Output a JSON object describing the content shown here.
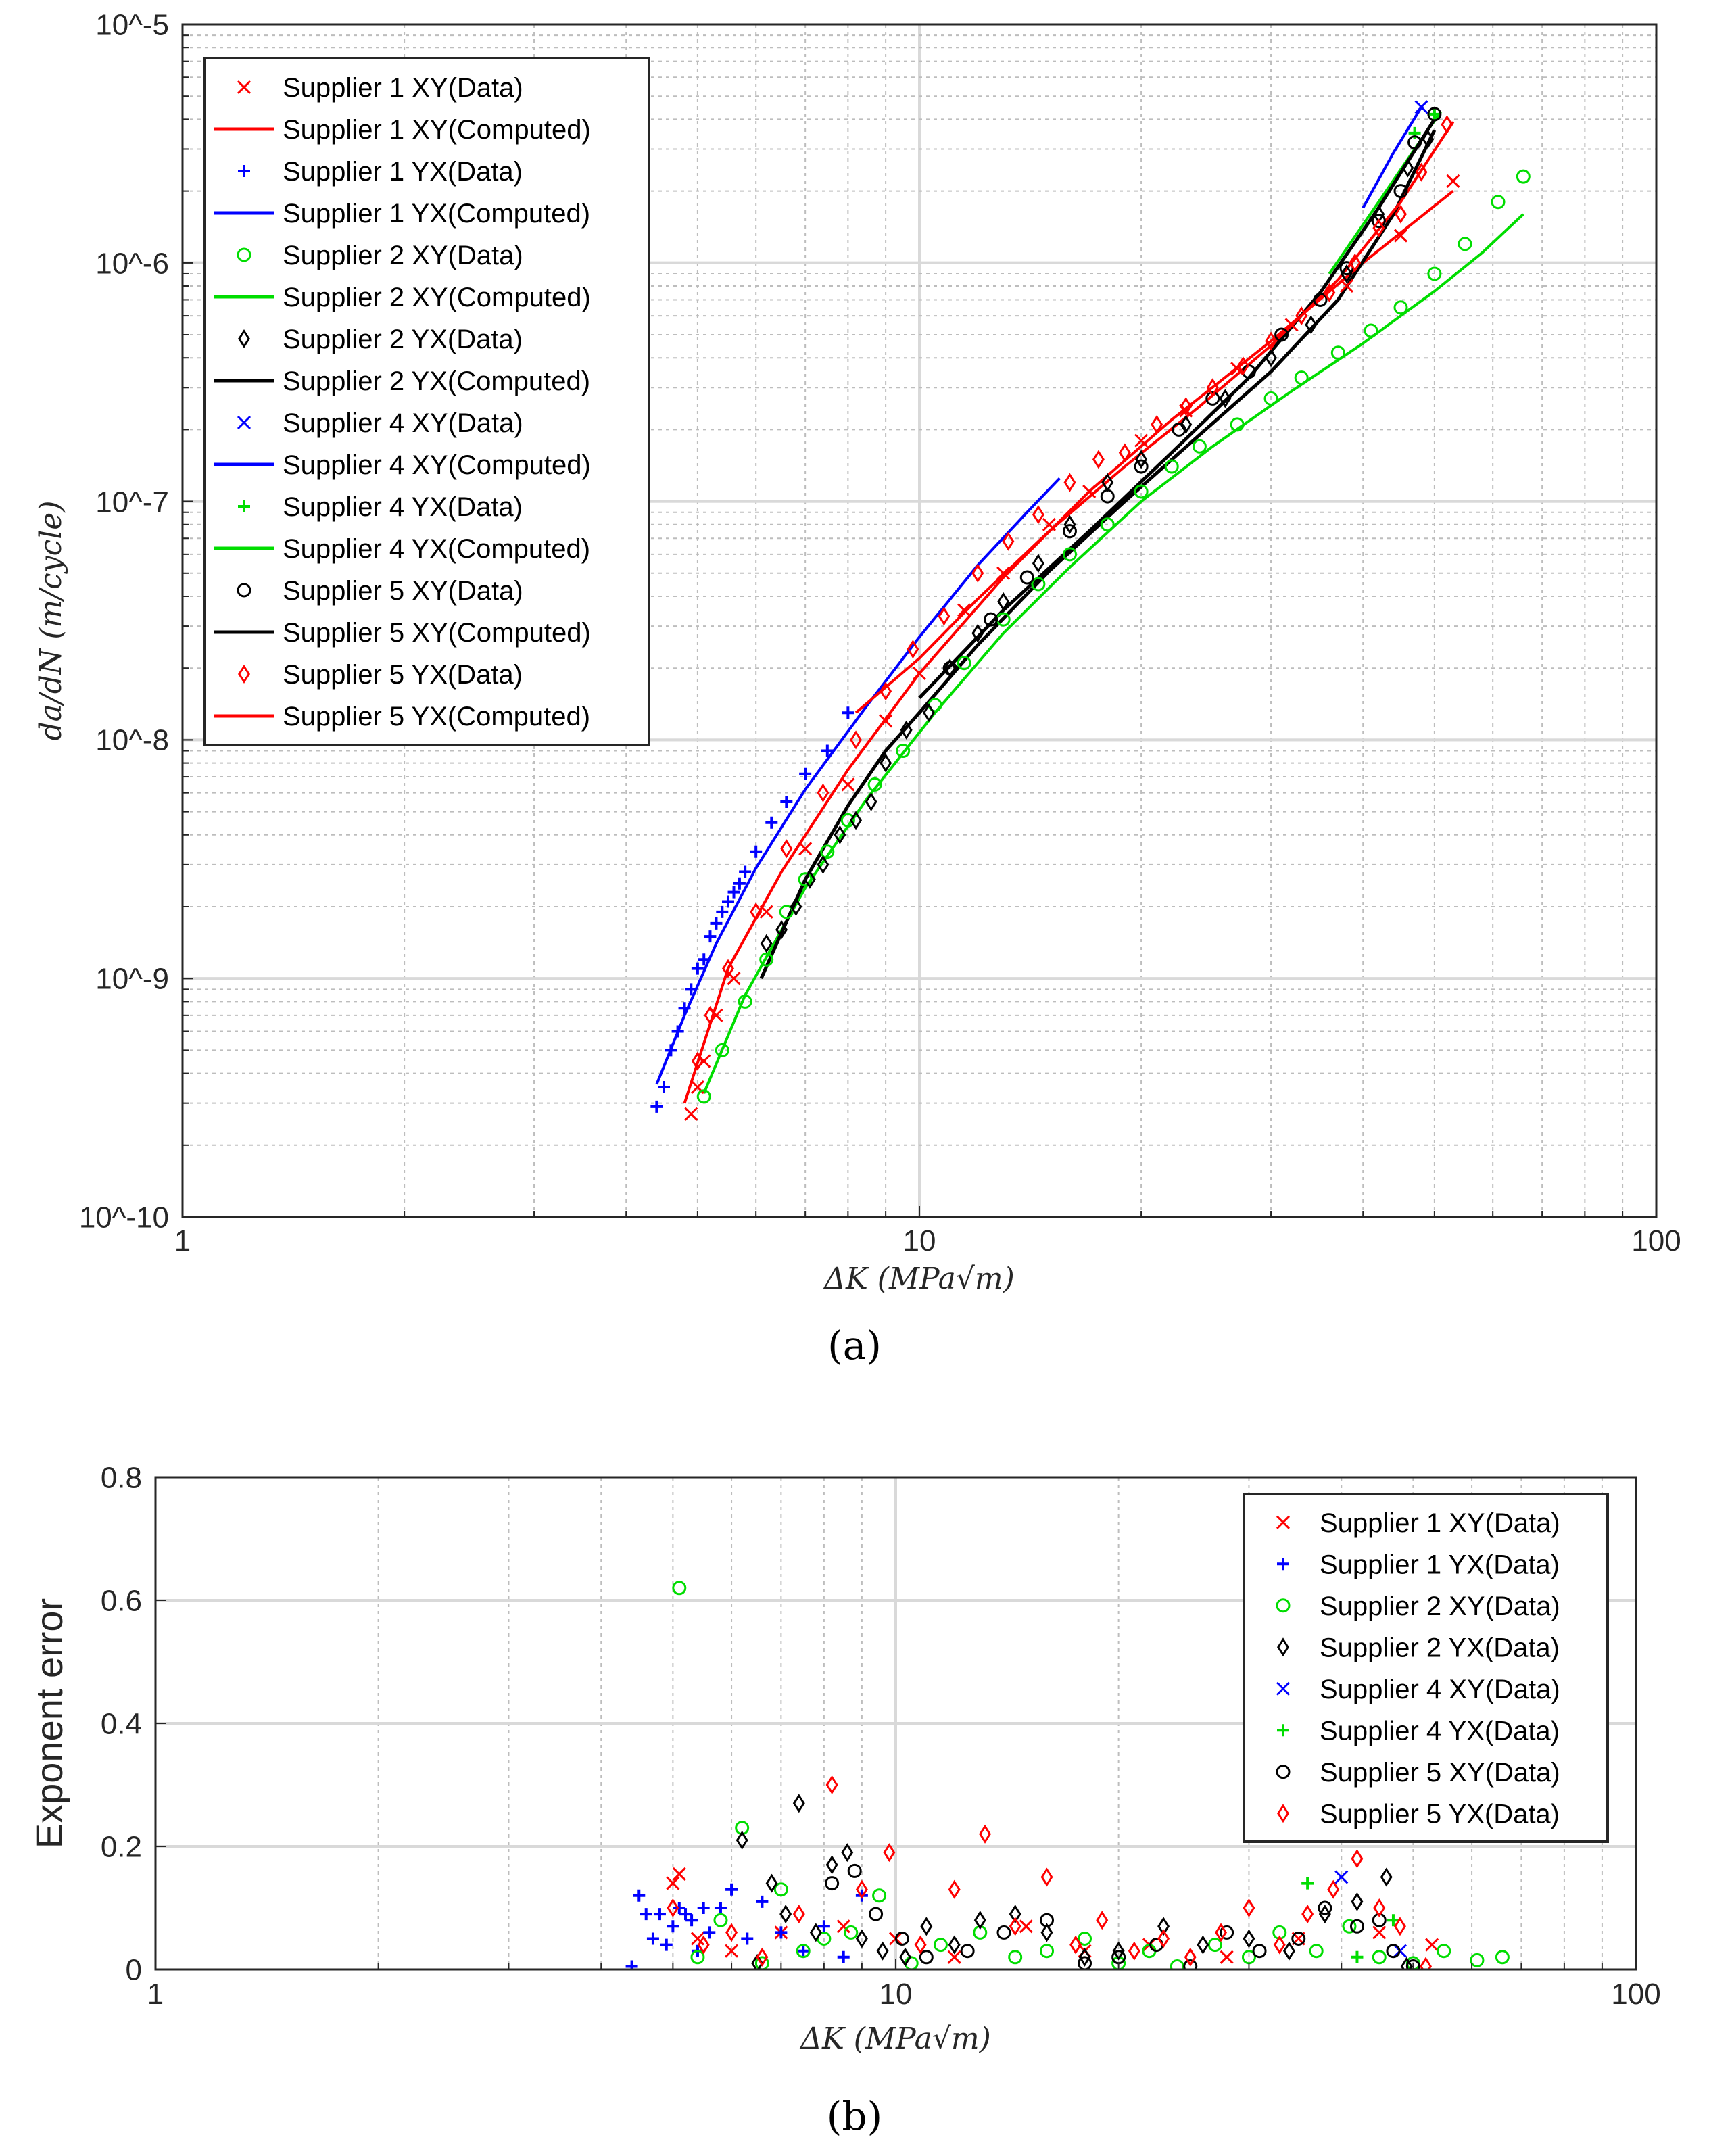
{
  "figure": {
    "label_a": "(a)",
    "label_b": "(b)"
  },
  "chart_data": [
    {
      "type": "scatter",
      "id": "a",
      "title": "",
      "xlabel": "ΔK (MPa√m)",
      "ylabel": "da/dN (m/cycle)",
      "xscale": "log",
      "yscale": "log",
      "xlim": [
        1,
        100
      ],
      "ylim": [
        1e-10,
        1e-05
      ],
      "grid": true,
      "legend_position": "top-left",
      "x_tick_labels": [
        "1",
        "10",
        "100"
      ],
      "y_tick_labels": [
        "10^-10",
        "10^-9",
        "10^-8",
        "10^-7",
        "10^-6",
        "10^-5"
      ],
      "series": [
        {
          "name": "Supplier 1 XY(Data)",
          "color": "#ff0000",
          "marker": "x",
          "x": [
            4.9,
            5.0,
            5.1,
            5.3,
            5.6,
            6.2,
            7.0,
            8.0,
            9.0,
            10.0,
            11.5,
            13.0,
            15.0,
            17.0,
            20.0,
            23.0,
            27.0,
            32.0,
            38.0,
            45.0,
            53.0
          ],
          "y": [
            2.7e-10,
            3.5e-10,
            4.5e-10,
            7e-10,
            1e-09,
            1.9e-09,
            3.5e-09,
            6.5e-09,
            1.2e-08,
            1.9e-08,
            3.5e-08,
            5e-08,
            8e-08,
            1.1e-07,
            1.8e-07,
            2.4e-07,
            3.6e-07,
            5.5e-07,
            8e-07,
            1.3e-06,
            2.2e-06
          ]
        },
        {
          "name": "Supplier 1 XY(Computed)",
          "color": "#ff0000",
          "line": "solid",
          "x": [
            4.8,
            5.5,
            6.5,
            8,
            10,
            13,
            17,
            22,
            30,
            40,
            53
          ],
          "y": [
            3e-10,
            1.1e-09,
            2.8e-09,
            7.5e-09,
            1.9e-08,
            4.8e-08,
            1.1e-07,
            2.2e-07,
            4.7e-07,
            1e-06,
            2e-06
          ]
        },
        {
          "name": "Supplier 1 YX(Data)",
          "color": "#0000ff",
          "marker": "+",
          "x": [
            4.4,
            4.5,
            4.6,
            4.7,
            4.8,
            4.9,
            5.0,
            5.1,
            5.2,
            5.3,
            5.4,
            5.5,
            5.6,
            5.7,
            5.8,
            6.0,
            6.3,
            6.6,
            7.0,
            7.5,
            8.0
          ],
          "y": [
            2.9e-10,
            3.5e-10,
            5e-10,
            6e-10,
            7.5e-10,
            9e-10,
            1.1e-09,
            1.2e-09,
            1.5e-09,
            1.7e-09,
            1.9e-09,
            2.1e-09,
            2.3e-09,
            2.5e-09,
            2.8e-09,
            3.4e-09,
            4.5e-09,
            5.5e-09,
            7.2e-09,
            9e-09,
            1.3e-08
          ]
        },
        {
          "name": "Supplier 1 YX(Computed)",
          "color": "#0000ff",
          "line": "solid",
          "x": [
            4.4,
            4.8,
            5.3,
            6,
            7,
            8.5,
            10,
            12,
            14,
            15.5
          ],
          "y": [
            3.6e-10,
            7e-10,
            1.4e-09,
            2.9e-09,
            6.2e-09,
            1.4e-08,
            2.7e-08,
            5.4e-08,
            9e-08,
            1.25e-07
          ]
        },
        {
          "name": "Supplier 2 XY(Data)",
          "color": "#00dd00",
          "marker": "o",
          "x": [
            5.1,
            5.4,
            5.8,
            6.2,
            6.6,
            7.0,
            7.5,
            8.0,
            8.7,
            9.5,
            10.5,
            11.5,
            13.0,
            14.5,
            16.0,
            18.0,
            20.0,
            22.0,
            24.0,
            27.0,
            30.0,
            33.0,
            37.0,
            41.0,
            45.0,
            50.0,
            55.0,
            61.0,
            66.0
          ],
          "y": [
            3.2e-10,
            5e-10,
            8e-10,
            1.2e-09,
            1.9e-09,
            2.6e-09,
            3.4e-09,
            4.6e-09,
            6.5e-09,
            9e-09,
            1.4e-08,
            2.1e-08,
            3.2e-08,
            4.5e-08,
            6e-08,
            8e-08,
            1.1e-07,
            1.4e-07,
            1.7e-07,
            2.1e-07,
            2.7e-07,
            3.3e-07,
            4.2e-07,
            5.2e-07,
            6.5e-07,
            9e-07,
            1.2e-06,
            1.8e-06,
            2.3e-06
          ]
        },
        {
          "name": "Supplier 2 XY(Computed)",
          "color": "#00dd00",
          "line": "solid",
          "x": [
            5.1,
            5.8,
            7,
            8.5,
            10.5,
            13,
            16,
            20,
            25,
            32,
            40,
            50,
            58,
            66
          ],
          "y": [
            3.3e-10,
            8.5e-10,
            2.4e-09,
            5.7e-09,
            1.3e-08,
            2.8e-08,
            5.3e-08,
            1e-07,
            1.7e-07,
            2.9e-07,
            4.6e-07,
            7.6e-07,
            1.1e-06,
            1.6e-06
          ]
        },
        {
          "name": "Supplier 2 YX(Data)",
          "color": "#000000",
          "marker": "diamond",
          "x": [
            6.2,
            6.5,
            6.8,
            7.1,
            7.4,
            7.8,
            8.2,
            8.6,
            9.0,
            9.6,
            10.3,
            11.0,
            12.0,
            13.0,
            14.5,
            16.0,
            18.0,
            20.0,
            23.0,
            26.0,
            30.0,
            34.0,
            38.0,
            42.0,
            46.0,
            49.0
          ],
          "y": [
            1.4e-09,
            1.6e-09,
            2e-09,
            2.6e-09,
            3e-09,
            4e-09,
            4.6e-09,
            5.5e-09,
            8e-09,
            1.1e-08,
            1.3e-08,
            2e-08,
            2.8e-08,
            3.8e-08,
            5.5e-08,
            8e-08,
            1.2e-07,
            1.5e-07,
            2.1e-07,
            2.7e-07,
            4e-07,
            5.5e-07,
            9e-07,
            1.6e-06,
            2.5e-06,
            3.3e-06
          ]
        },
        {
          "name": "Supplier 2 YX(Computed)",
          "color": "#000000",
          "line": "solid",
          "x": [
            6.1,
            7,
            8,
            9,
            10,
            12,
            15,
            19,
            24,
            30,
            37,
            44,
            50
          ],
          "y": [
            1e-09,
            2.6e-09,
            5.3e-09,
            9e-09,
            1.3e-08,
            2.5e-08,
            5.1e-08,
            1e-07,
            1.9e-07,
            3.5e-07,
            7e-07,
            1.6e-06,
            3.6e-06
          ]
        },
        {
          "name": "Supplier 4 XY(Data)",
          "color": "#0000ff",
          "marker": "x",
          "x": [
            48.0
          ],
          "y": [
            4.5e-06
          ]
        },
        {
          "name": "Supplier 4 XY(Computed)",
          "color": "#0000ff",
          "line": "solid",
          "x": [
            40,
            44,
            48
          ],
          "y": [
            1.7e-06,
            2.9e-06,
            4.5e-06
          ]
        },
        {
          "name": "Supplier 4 YX(Data)",
          "color": "#00dd00",
          "marker": "+",
          "x": [
            47.0,
            50.0
          ],
          "y": [
            3.5e-06,
            4.2e-06
          ]
        },
        {
          "name": "Supplier 4 YX(Computed)",
          "color": "#00dd00",
          "line": "solid",
          "x": [
            36,
            42,
            48,
            51
          ],
          "y": [
            9e-07,
            1.8e-06,
            3.3e-06,
            4.3e-06
          ]
        },
        {
          "name": "Supplier 5 XY(Data)",
          "color": "#000000",
          "marker": "o",
          "x": [
            11.0,
            12.5,
            14.0,
            16.0,
            18.0,
            20.0,
            22.5,
            25.0,
            28.0,
            31.0,
            35.0,
            38.0,
            42.0,
            45.0,
            47.0,
            50.0
          ],
          "y": [
            2e-08,
            3.2e-08,
            4.8e-08,
            7.5e-08,
            1.05e-07,
            1.4e-07,
            2e-07,
            2.7e-07,
            3.5e-07,
            5e-07,
            7e-07,
            9.5e-07,
            1.5e-06,
            2e-06,
            3.2e-06,
            4.2e-06
          ]
        },
        {
          "name": "Supplier 5 XY(Computed)",
          "color": "#000000",
          "line": "solid",
          "x": [
            10,
            13,
            17,
            22,
            28,
            35,
            42,
            50
          ],
          "y": [
            1.5e-08,
            3.5e-08,
            7.5e-08,
            1.6e-07,
            3.3e-07,
            7.5e-07,
            1.7e-06,
            4e-06
          ]
        },
        {
          "name": "Supplier 5 YX(Data)",
          "color": "#ff0000",
          "marker": "diamond",
          "x": [
            5.0,
            5.2,
            5.5,
            6.0,
            6.6,
            7.4,
            8.2,
            9.0,
            9.8,
            10.8,
            12.0,
            13.2,
            14.5,
            16.0,
            17.5,
            19.0,
            21.0,
            23.0,
            25.0,
            27.5,
            30.0,
            33.0,
            36.0,
            39.0,
            42.0,
            45.0,
            48.0,
            52.0
          ],
          "y": [
            4.5e-10,
            7e-10,
            1.1e-09,
            1.9e-09,
            3.5e-09,
            6e-09,
            1e-08,
            1.6e-08,
            2.4e-08,
            3.3e-08,
            5e-08,
            6.8e-08,
            8.8e-08,
            1.2e-07,
            1.5e-07,
            1.6e-07,
            2.1e-07,
            2.5e-07,
            3e-07,
            3.7e-07,
            4.7e-07,
            6e-07,
            7.5e-07,
            1e-06,
            1.4e-06,
            1.6e-06,
            2.4e-06,
            3.8e-06
          ]
        },
        {
          "name": "Supplier 5 YX(Computed)",
          "color": "#ff0000",
          "line": "solid",
          "x": [
            8.2,
            10,
            12,
            15,
            19,
            24,
            30,
            37,
            45,
            53
          ],
          "y": [
            1.3e-08,
            2.2e-08,
            3.9e-08,
            7.5e-08,
            1.4e-07,
            2.5e-07,
            4.5e-07,
            8.5e-07,
            1.8e-06,
            3.9e-06
          ]
        }
      ]
    },
    {
      "type": "scatter",
      "id": "b",
      "title": "",
      "xlabel": "ΔK (MPa√m)",
      "ylabel": "Exponent error",
      "xscale": "log",
      "yscale": "linear",
      "xlim": [
        1,
        100
      ],
      "ylim": [
        0,
        0.8
      ],
      "grid": true,
      "legend_position": "top-right",
      "x_tick_labels": [
        "1",
        "10",
        "100"
      ],
      "y_tick_labels": [
        "0",
        "0.2",
        "0.4",
        "0.6",
        "0.8"
      ],
      "series": [
        {
          "name": "Supplier 1 XY(Data)",
          "color": "#ff0000",
          "marker": "x",
          "x": [
            5.0,
            5.1,
            5.4,
            6.0,
            7.0,
            8.5,
            10.0,
            12.0,
            15.0,
            18.0,
            22.0,
            28.0,
            35.0,
            45.0,
            53.0
          ],
          "y": [
            0.14,
            0.155,
            0.05,
            0.03,
            0.06,
            0.07,
            0.05,
            0.02,
            0.07,
            0.03,
            0.04,
            0.02,
            0.05,
            0.06,
            0.04
          ]
        },
        {
          "name": "Supplier 1 YX(Data)",
          "color": "#0000ff",
          "marker": "+",
          "x": [
            4.4,
            4.5,
            4.6,
            4.7,
            4.8,
            4.9,
            5.0,
            5.1,
            5.2,
            5.3,
            5.4,
            5.5,
            5.6,
            5.8,
            6.0,
            6.3,
            6.6,
            7.0,
            7.5,
            8.0,
            8.5,
            9.0
          ],
          "y": [
            0.005,
            0.12,
            0.09,
            0.05,
            0.09,
            0.04,
            0.07,
            0.1,
            0.09,
            0.08,
            0.03,
            0.1,
            0.06,
            0.1,
            0.13,
            0.05,
            0.11,
            0.06,
            0.03,
            0.07,
            0.02,
            0.12
          ]
        },
        {
          "name": "Supplier 2 XY(Data)",
          "color": "#00dd00",
          "marker": "o",
          "x": [
            5.1,
            5.4,
            5.8,
            6.2,
            6.6,
            7.0,
            7.5,
            8.0,
            8.7,
            9.5,
            10.5,
            11.5,
            13.0,
            14.5,
            16.0,
            18.0,
            20.0,
            22.0,
            24.0,
            27.0,
            30.0,
            33.0,
            37.0,
            41.0,
            45.0,
            50.0,
            55.0,
            61.0,
            66.0
          ],
          "y": [
            0.62,
            0.02,
            0.08,
            0.23,
            0.01,
            0.13,
            0.03,
            0.05,
            0.06,
            0.12,
            0.01,
            0.04,
            0.06,
            0.02,
            0.03,
            0.05,
            0.01,
            0.03,
            0.005,
            0.04,
            0.02,
            0.06,
            0.03,
            0.07,
            0.02,
            0.01,
            0.03,
            0.015,
            0.02
          ]
        },
        {
          "name": "Supplier 2 YX(Data)",
          "color": "#000000",
          "marker": "diamond",
          "x": [
            6.2,
            6.5,
            6.8,
            7.1,
            7.4,
            7.8,
            8.2,
            8.6,
            9.0,
            9.6,
            10.3,
            11.0,
            12.0,
            13.0,
            14.5,
            16.0,
            18.0,
            20.0,
            23.0,
            26.0,
            30.0,
            34.0,
            38.0,
            42.0,
            46.0,
            49.0
          ],
          "y": [
            0.21,
            0.01,
            0.14,
            0.09,
            0.27,
            0.06,
            0.17,
            0.19,
            0.05,
            0.03,
            0.02,
            0.07,
            0.04,
            0.08,
            0.09,
            0.06,
            0.02,
            0.03,
            0.07,
            0.04,
            0.05,
            0.03,
            0.09,
            0.11,
            0.15,
            0.005
          ]
        },
        {
          "name": "Supplier 4 XY(Data)",
          "color": "#0000ff",
          "marker": "x",
          "x": [
            40.0,
            48.0
          ],
          "y": [
            0.15,
            0.03
          ]
        },
        {
          "name": "Supplier 4 YX(Data)",
          "color": "#00dd00",
          "marker": "+",
          "x": [
            36.0,
            42.0,
            47.0
          ],
          "y": [
            0.14,
            0.02,
            0.08
          ]
        },
        {
          "name": "Supplier 5 XY(Data)",
          "color": "#000000",
          "marker": "o",
          "x": [
            8.2,
            8.8,
            9.4,
            10.2,
            11.0,
            12.5,
            14.0,
            16.0,
            18.0,
            20.0,
            22.5,
            25.0,
            28.0,
            31.0,
            35.0,
            38.0,
            42.0,
            45.0,
            47.0,
            50.0
          ],
          "y": [
            0.14,
            0.16,
            0.09,
            0.05,
            0.02,
            0.03,
            0.06,
            0.08,
            0.01,
            0.02,
            0.04,
            0.005,
            0.06,
            0.03,
            0.05,
            0.1,
            0.07,
            0.08,
            0.03,
            0.005
          ]
        },
        {
          "name": "Supplier 5 YX(Data)",
          "color": "#ff0000",
          "marker": "diamond",
          "x": [
            5.0,
            5.5,
            6.0,
            6.6,
            7.4,
            8.2,
            9.0,
            9.8,
            10.8,
            12.0,
            13.2,
            14.5,
            16.0,
            17.5,
            19.0,
            21.0,
            23.0,
            25.0,
            27.5,
            30.0,
            33.0,
            36.0,
            39.0,
            42.0,
            45.0,
            48.0,
            52.0
          ],
          "y": [
            0.1,
            0.04,
            0.06,
            0.02,
            0.09,
            0.3,
            0.13,
            0.19,
            0.04,
            0.13,
            0.22,
            0.07,
            0.15,
            0.04,
            0.08,
            0.03,
            0.05,
            0.02,
            0.06,
            0.1,
            0.04,
            0.09,
            0.13,
            0.18,
            0.1,
            0.07,
            0.005
          ]
        }
      ]
    }
  ]
}
